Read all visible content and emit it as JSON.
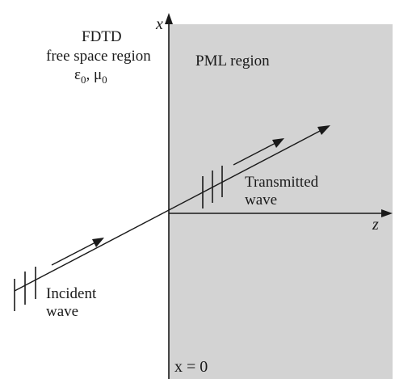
{
  "diagram": {
    "free_space": {
      "line1": "FDTD",
      "line2": "free space region",
      "line3": "ε0, μ0"
    },
    "pml_label": "PML region",
    "transmitted_label": "Transmitted wave",
    "incident_label": "Incident wave",
    "axis_x_label": "x",
    "axis_z_label": "z",
    "boundary_label": "x = 0",
    "colors": {
      "pml_fill": "#d3d3d3",
      "line": "#1a1a1a",
      "background": "#ffffff"
    }
  }
}
